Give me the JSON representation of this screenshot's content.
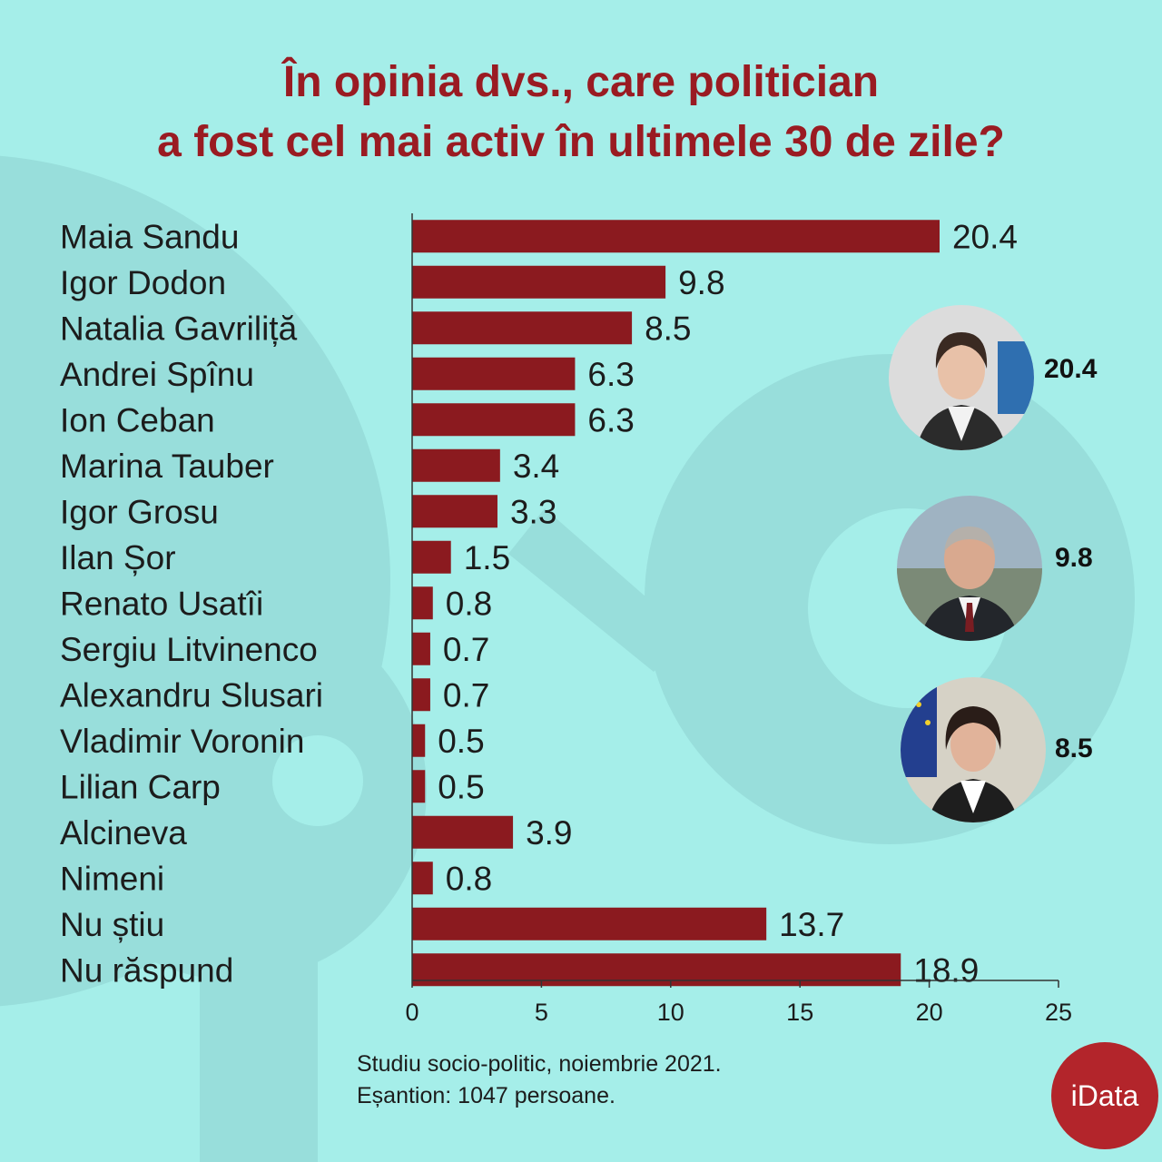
{
  "title_lines": [
    "În opinia dvs., care politician",
    "a fost cel mai activ în ultimele 30 de zile?"
  ],
  "chart_data": {
    "type": "bar",
    "orientation": "horizontal",
    "title": "În opinia dvs., care politician a fost cel mai activ în ultimele 30 de zile?",
    "categories": [
      "Maia Sandu",
      "Igor Dodon",
      "Natalia Gavriliță",
      "Andrei Spînu",
      "Ion Ceban",
      "Marina Tauber",
      "Igor Grosu",
      "Ilan Șor",
      "Renato Usatîi",
      "Sergiu Litvinenco",
      "Alexandru Slusari",
      "Vladimir Voronin",
      "Lilian Carp",
      "Alcineva",
      "Nimeni",
      "Nu știu",
      "Nu răspund"
    ],
    "values": [
      20.4,
      9.8,
      8.5,
      6.3,
      6.3,
      3.4,
      3.3,
      1.5,
      0.8,
      0.7,
      0.7,
      0.5,
      0.5,
      3.9,
      0.8,
      13.7,
      18.9
    ],
    "value_labels": [
      "20.4",
      "9.8",
      "8.5",
      "6.3",
      "6.3",
      "3.4",
      "3.3",
      "1.5",
      "0.8",
      "0.7",
      "0.7",
      "0.5",
      "0.5",
      "3.9",
      "0.8",
      "13.7",
      "18.9"
    ],
    "xlim": [
      0,
      25
    ],
    "xticks": [
      "0",
      "5",
      "10",
      "15",
      "20",
      "25"
    ],
    "xlabel": "",
    "ylabel": "",
    "grid": false,
    "bar_color": "#8b1a1f"
  },
  "highlights": [
    {
      "value": "20.4",
      "icon": "maia-sandu-portrait"
    },
    {
      "value": "9.8",
      "icon": "igor-dodon-portrait"
    },
    {
      "value": "8.5",
      "icon": "natalia-gavrilita-portrait"
    }
  ],
  "source_lines": [
    "Studiu socio-politic, noiembrie 2021.",
    "Eșantion: 1047 persoane."
  ],
  "logo_text": "iData",
  "colors": {
    "background": "#a5eee9",
    "title": "#9a1b22",
    "bar": "#8b1a1f",
    "logo": "#b3252b"
  }
}
